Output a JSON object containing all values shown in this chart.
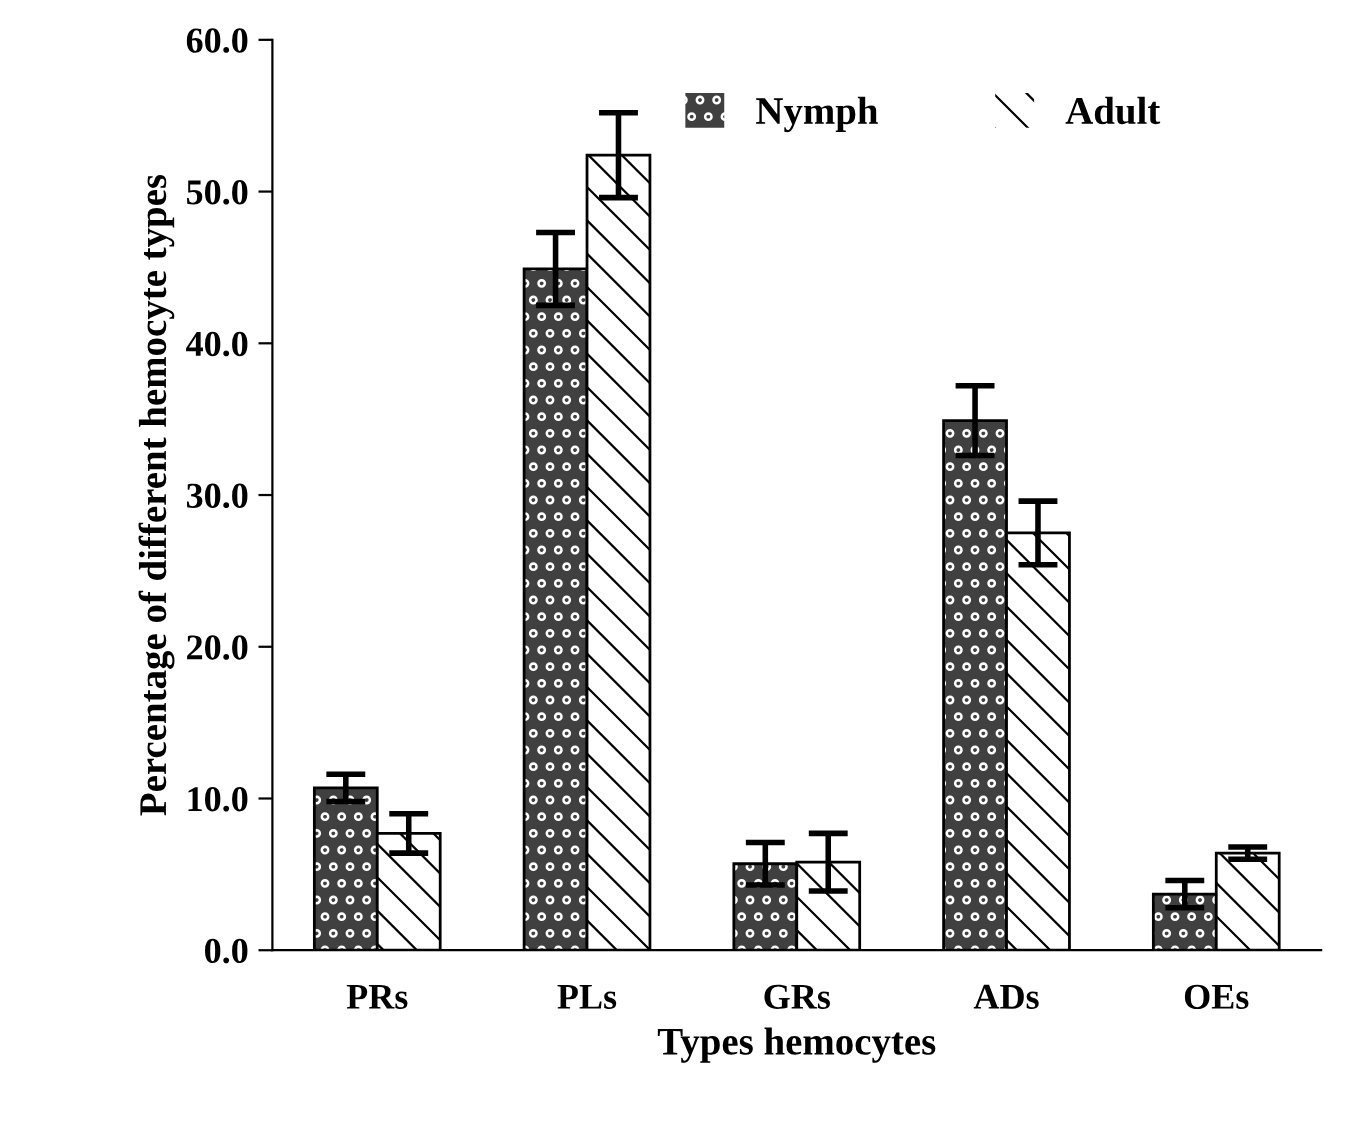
{
  "chart_data": {
    "type": "bar",
    "xlabel": "Types hemocytes",
    "ylabel": "Percentage of different hemocyte types",
    "categories": [
      "PRs",
      "PLs",
      "GRs",
      "ADs",
      "OEs"
    ],
    "series": [
      {
        "name": "Nymph",
        "color": "#404040",
        "values": [
          10.7,
          44.9,
          5.7,
          34.9,
          3.7
        ],
        "errors": [
          0.9,
          2.4,
          1.4,
          2.3,
          0.9
        ]
      },
      {
        "name": "Adult",
        "color": "#ffffff",
        "values": [
          7.7,
          52.4,
          5.8,
          27.5,
          6.4
        ],
        "errors": [
          1.3,
          2.8,
          1.9,
          2.1,
          0.4
        ]
      }
    ],
    "ylim": [
      0,
      60
    ],
    "yticks": [
      {
        "value": 0,
        "label": "0.0"
      },
      {
        "value": 10,
        "label": "10.0"
      },
      {
        "value": 20,
        "label": "20.0"
      },
      {
        "value": 30,
        "label": "30.0"
      },
      {
        "value": 40,
        "label": "40.0"
      },
      {
        "value": 50,
        "label": "50.0"
      },
      {
        "value": 60,
        "label": "60.0"
      }
    ],
    "grid": false,
    "legend": "top right"
  }
}
